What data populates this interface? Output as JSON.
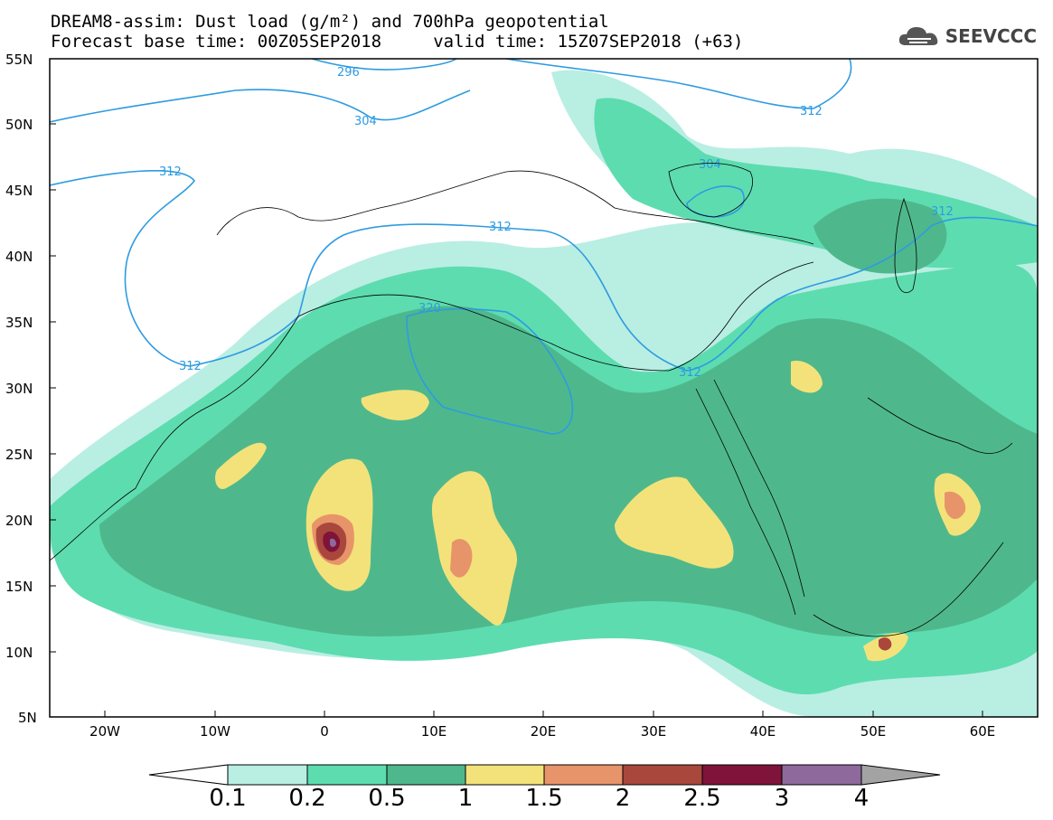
{
  "title_line1": "DREAM8-assim: Dust load (g/m²) and 700hPa geopotential",
  "title_line2": "Forecast base time: 00Z05SEP2018     valid time: 15Z07SEP2018 (+63)",
  "logo_text": "SEEVCCC",
  "lat_labels": [
    "55N",
    "50N",
    "45N",
    "40N",
    "35N",
    "30N",
    "25N",
    "20N",
    "15N",
    "10N",
    "5N"
  ],
  "lon_labels": [
    "20W",
    "10W",
    "0",
    "10E",
    "20E",
    "30E",
    "40E",
    "50E",
    "60E"
  ],
  "contour_labels": [
    "296",
    "304",
    "312",
    "312",
    "312",
    "312",
    "304",
    "312",
    "320",
    "312"
  ],
  "colorbar": {
    "labels": [
      "0.1",
      "0.2",
      "0.5",
      "1",
      "1.5",
      "2",
      "2.5",
      "3",
      "4"
    ],
    "colors": [
      "#b9eee3",
      "#5ddcb0",
      "#4eb88c",
      "#f3e27a",
      "#e8946a",
      "#a9473d",
      "#7f1339",
      "#8e6a9c",
      "#a3a3a3"
    ]
  }
}
